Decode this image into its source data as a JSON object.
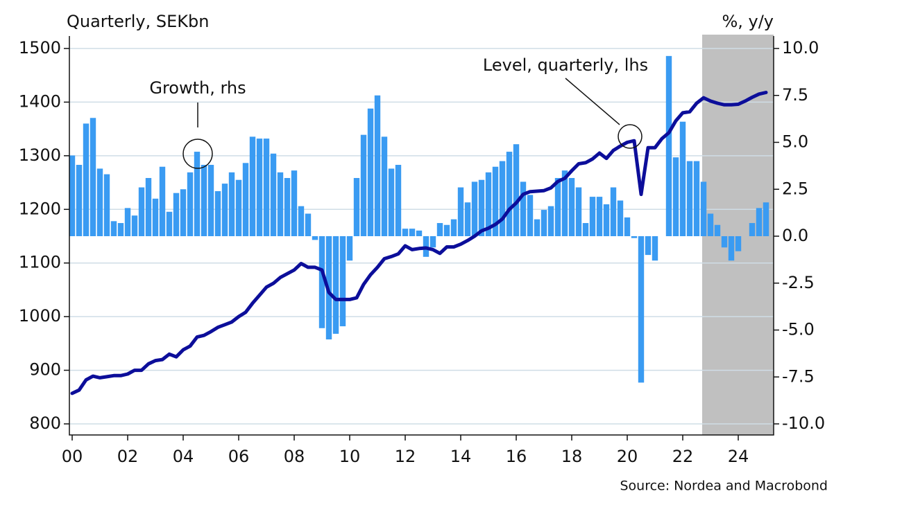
{
  "chart_data": {
    "type": "combo",
    "left_axis_label": "Quarterly, SEKbn",
    "right_axis_label": "%, y/y",
    "source": "Source: Nordea and Macrobond",
    "x": [
      2000,
      2000.25,
      2000.5,
      2000.75,
      2001,
      2001.25,
      2001.5,
      2001.75,
      2002,
      2002.25,
      2002.5,
      2002.75,
      2003,
      2003.25,
      2003.5,
      2003.75,
      2004,
      2004.25,
      2004.5,
      2004.75,
      2005,
      2005.25,
      2005.5,
      2005.75,
      2006,
      2006.25,
      2006.5,
      2006.75,
      2007,
      2007.25,
      2007.5,
      2007.75,
      2008,
      2008.25,
      2008.5,
      2008.75,
      2009,
      2009.25,
      2009.5,
      2009.75,
      2010,
      2010.25,
      2010.5,
      2010.75,
      2011,
      2011.25,
      2011.5,
      2011.75,
      2012,
      2012.25,
      2012.5,
      2012.75,
      2013,
      2013.25,
      2013.5,
      2013.75,
      2014,
      2014.25,
      2014.5,
      2014.75,
      2015,
      2015.25,
      2015.5,
      2015.75,
      2016,
      2016.25,
      2016.5,
      2016.75,
      2017,
      2017.25,
      2017.5,
      2017.75,
      2018,
      2018.25,
      2018.5,
      2018.75,
      2019,
      2019.25,
      2019.5,
      2019.75,
      2020,
      2020.25,
      2020.5,
      2020.75,
      2021,
      2021.25,
      2021.5,
      2021.75,
      2022,
      2022.25,
      2022.5,
      2022.75,
      2023,
      2023.25,
      2023.5,
      2023.75,
      2024,
      2024.25,
      2024.5,
      2024.75,
      2025
    ],
    "series": [
      {
        "name": "Growth, rhs",
        "type": "bar",
        "axis": "y2",
        "color": "#3a9bf2",
        "values": [
          4.3,
          3.8,
          6.0,
          6.3,
          3.6,
          3.3,
          0.8,
          0.7,
          1.5,
          1.1,
          2.6,
          3.1,
          2.0,
          3.7,
          1.3,
          2.3,
          2.5,
          3.4,
          4.5,
          3.8,
          3.8,
          2.4,
          2.8,
          3.4,
          3.0,
          3.9,
          5.3,
          5.2,
          5.2,
          4.4,
          3.4,
          3.1,
          3.5,
          1.6,
          1.2,
          -0.2,
          -4.9,
          -5.5,
          -5.2,
          -4.8,
          -1.3,
          3.1,
          5.4,
          6.8,
          7.5,
          5.3,
          3.6,
          3.8,
          0.4,
          0.4,
          0.3,
          -1.1,
          -0.6,
          0.7,
          0.6,
          0.9,
          2.6,
          1.8,
          2.9,
          3.0,
          3.4,
          3.7,
          4.0,
          4.5,
          4.9,
          2.9,
          2.2,
          0.9,
          1.4,
          1.6,
          3.1,
          3.5,
          3.1,
          2.6,
          0.7,
          2.1,
          2.1,
          1.7,
          2.6,
          1.9,
          1.0,
          -0.1,
          -7.8,
          -1.0,
          -1.3,
          0.0,
          9.6,
          4.2,
          6.1,
          4.0,
          4.0,
          2.9,
          1.2,
          0.6,
          -0.6,
          -1.3,
          -0.8,
          0.0,
          0.7,
          1.5,
          1.8
        ]
      },
      {
        "name": "Level, quarterly, lhs",
        "type": "line",
        "color": "#0c0e9a",
        "values": [
          857,
          863,
          882,
          889,
          886,
          888,
          890,
          890,
          893,
          900,
          900,
          912,
          918,
          920,
          930,
          925,
          938,
          945,
          962,
          965,
          972,
          980,
          985,
          990,
          1000,
          1008,
          1025,
          1040,
          1055,
          1062,
          1073,
          1080,
          1087,
          1099,
          1092,
          1092,
          1087,
          1045,
          1032,
          1032,
          1032,
          1035,
          1060,
          1078,
          1092,
          1108,
          1112,
          1117,
          1132,
          1125,
          1127,
          1128,
          1125,
          1118,
          1130,
          1130,
          1135,
          1142,
          1150,
          1160,
          1165,
          1172,
          1182,
          1200,
          1212,
          1228,
          1233,
          1234,
          1235,
          1240,
          1252,
          1258,
          1272,
          1285,
          1287,
          1294,
          1305,
          1295,
          1310,
          1318,
          1325,
          1328,
          1228,
          1315,
          1315,
          1332,
          1343,
          1365,
          1380,
          1382,
          1398,
          1408,
          1402,
          1398,
          1395,
          1395,
          1396,
          1402,
          1409,
          1415,
          1418
        ]
      }
    ],
    "xlim": [
      1999.9,
      2025.275
    ],
    "xticks": [
      {
        "value": 2000,
        "label": "00"
      },
      {
        "value": 2002,
        "label": "02"
      },
      {
        "value": 2004,
        "label": "04"
      },
      {
        "value": 2006,
        "label": "06"
      },
      {
        "value": 2008,
        "label": "08"
      },
      {
        "value": 2010,
        "label": "10"
      },
      {
        "value": 2012,
        "label": "12"
      },
      {
        "value": 2014,
        "label": "14"
      },
      {
        "value": 2016,
        "label": "16"
      },
      {
        "value": 2018,
        "label": "18"
      },
      {
        "value": 2020,
        "label": "20"
      },
      {
        "value": 2022,
        "label": "22"
      },
      {
        "value": 2024,
        "label": "24"
      }
    ],
    "ylim": [
      800,
      1500
    ],
    "yticks": [
      800,
      900,
      1000,
      1100,
      1200,
      1300,
      1400,
      1500
    ],
    "y2lim": [
      -10,
      10
    ],
    "y2ticks": [
      {
        "value": 10,
        "label": "10.0"
      },
      {
        "value": 7.5,
        "label": "7.5"
      },
      {
        "value": 5,
        "label": "5.0"
      },
      {
        "value": 2.5,
        "label": "2.5"
      },
      {
        "value": 0,
        "label": "0.0"
      },
      {
        "value": -2.5,
        "label": "-2.5"
      },
      {
        "value": -5,
        "label": "-5.0"
      },
      {
        "value": -7.5,
        "label": "-7.5"
      },
      {
        "value": -10,
        "label": "-10.0"
      }
    ],
    "grid": true,
    "shaded_xrange": [
      2022.7,
      2025.275
    ],
    "shade_color": "#c0c0c0"
  }
}
